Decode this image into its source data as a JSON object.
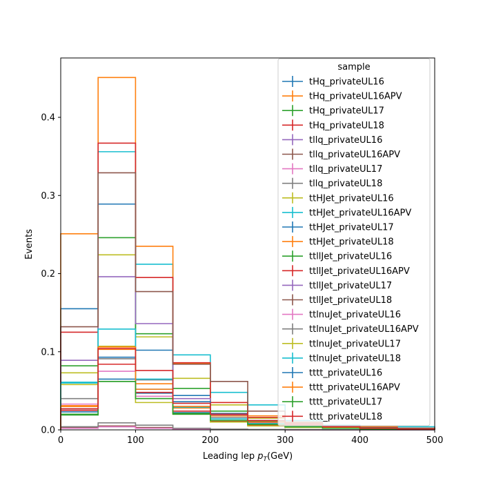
{
  "chart_data": {
    "type": "step-histogram",
    "title": "",
    "xlabel": "Leading lep",
    "xlabel_sub": "T",
    "xlabel_unit": "(GeV)",
    "ylabel": "Events",
    "xlim": [
      0,
      500
    ],
    "ylim": [
      0,
      0.476
    ],
    "xticks": [
      0,
      100,
      200,
      300,
      400,
      500
    ],
    "yticks": [
      0.0,
      0.1,
      0.2,
      0.3,
      0.4
    ],
    "xtick_labels": [
      "0",
      "100",
      "200",
      "300",
      "400",
      "500"
    ],
    "ytick_labels": [
      "0.0",
      "0.1",
      "0.2",
      "0.3",
      "0.4"
    ],
    "bin_edges": [
      0,
      50,
      100,
      150,
      200,
      250,
      300,
      350,
      400,
      450,
      500
    ],
    "grid": false,
    "legend": {
      "title": "sample",
      "placement": "top-right"
    },
    "series": [
      {
        "name": "tHq_privateUL16",
        "color": "#1f77b4",
        "values": [
          0.027,
          0.093,
          0.047,
          0.022,
          0.01,
          0.006,
          0.003,
          0.002,
          0.001,
          0.001
        ]
      },
      {
        "name": "tHq_privateUL16APV",
        "color": "#ff7f0e",
        "values": [
          0.031,
          0.103,
          0.059,
          0.028,
          0.012,
          0.007,
          0.004,
          0.002,
          0.001,
          0.001
        ]
      },
      {
        "name": "tHq_privateUL17",
        "color": "#2ca02c",
        "values": [
          0.019,
          0.062,
          0.04,
          0.021,
          0.01,
          0.006,
          0.003,
          0.002,
          0.001,
          0.001
        ]
      },
      {
        "name": "tHq_privateUL18",
        "color": "#d62728",
        "values": [
          0.025,
          0.084,
          0.048,
          0.024,
          0.011,
          0.006,
          0.004,
          0.002,
          0.001,
          0.001
        ]
      },
      {
        "name": "tllq_privateUL16",
        "color": "#9467bd",
        "values": [
          0.002,
          0.004,
          0.002,
          0.001,
          0.0005,
          0.0003,
          0.0002,
          0.0001,
          0.0001,
          0.0001
        ]
      },
      {
        "name": "tllq_privateUL16APV",
        "color": "#8c564b",
        "values": [
          0.003,
          0.005,
          0.003,
          0.001,
          0.0006,
          0.0003,
          0.0002,
          0.0001,
          0.0001,
          0.0001
        ]
      },
      {
        "name": "tllq_privateUL17",
        "color": "#e377c2",
        "values": [
          0.002,
          0.004,
          0.002,
          0.001,
          0.0005,
          0.0003,
          0.0002,
          0.0001,
          0.0001,
          0.0001
        ]
      },
      {
        "name": "tllq_privateUL18",
        "color": "#7f7f7f",
        "values": [
          0.004,
          0.009,
          0.006,
          0.002,
          0.001,
          0.0005,
          0.0003,
          0.0002,
          0.0001,
          0.0001
        ]
      },
      {
        "name": "ttHJet_privateUL16",
        "color": "#bcbd22",
        "values": [
          0.073,
          0.224,
          0.119,
          0.066,
          0.032,
          0.015,
          0.007,
          0.004,
          0.002,
          0.001
        ]
      },
      {
        "name": "ttHJet_privateUL16APV",
        "color": "#17becf",
        "values": [
          0.061,
          0.356,
          0.212,
          0.096,
          0.048,
          0.032,
          0.012,
          0.006,
          0.004,
          0.004
        ]
      },
      {
        "name": "ttHJet_privateUL17",
        "color": "#1f77b4",
        "values": [
          0.155,
          0.289,
          0.102,
          0.044,
          0.021,
          0.01,
          0.005,
          0.003,
          0.002,
          0.001
        ]
      },
      {
        "name": "ttHJet_privateUL18",
        "color": "#ff7f0e",
        "values": [
          0.251,
          0.451,
          0.235,
          0.085,
          0.035,
          0.018,
          0.009,
          0.005,
          0.004,
          0.002
        ]
      },
      {
        "name": "ttllJet_privateUL16",
        "color": "#2ca02c",
        "values": [
          0.082,
          0.246,
          0.123,
          0.053,
          0.024,
          0.011,
          0.006,
          0.003,
          0.002,
          0.001
        ]
      },
      {
        "name": "ttllJet_privateUL16APV",
        "color": "#d62728",
        "values": [
          0.125,
          0.367,
          0.195,
          0.086,
          0.035,
          0.016,
          0.008,
          0.004,
          0.003,
          0.002
        ]
      },
      {
        "name": "ttllJet_privateUL17",
        "color": "#9467bd",
        "values": [
          0.089,
          0.196,
          0.136,
          0.04,
          0.019,
          0.009,
          0.005,
          0.003,
          0.002,
          0.001
        ]
      },
      {
        "name": "ttllJet_privateUL18",
        "color": "#8c564b",
        "values": [
          0.132,
          0.329,
          0.177,
          0.084,
          0.062,
          0.024,
          0.01,
          0.005,
          0.003,
          0.002
        ]
      },
      {
        "name": "ttlnuJet_privateUL16",
        "color": "#e377c2",
        "values": [
          0.033,
          0.075,
          0.043,
          0.03,
          0.014,
          0.008,
          0.004,
          0.002,
          0.001,
          0.001
        ]
      },
      {
        "name": "ttlnuJet_privateUL16APV",
        "color": "#7f7f7f",
        "values": [
          0.04,
          0.091,
          0.064,
          0.034,
          0.016,
          0.01,
          0.005,
          0.003,
          0.002,
          0.001
        ]
      },
      {
        "name": "ttlnuJet_privateUL17",
        "color": "#bcbd22",
        "values": [
          0.058,
          0.107,
          0.035,
          0.02,
          0.01,
          0.005,
          0.003,
          0.002,
          0.001,
          0.001
        ]
      },
      {
        "name": "ttlnuJet_privateUL18",
        "color": "#17becf",
        "values": [
          0.06,
          0.129,
          0.065,
          0.029,
          0.014,
          0.008,
          0.004,
          0.003,
          0.002,
          0.001
        ]
      },
      {
        "name": "tttt_privateUL16",
        "color": "#1f77b4",
        "values": [
          0.023,
          0.065,
          0.052,
          0.036,
          0.02,
          0.012,
          0.007,
          0.004,
          0.002,
          0.001
        ]
      },
      {
        "name": "tttt_privateUL16APV",
        "color": "#ff7f0e",
        "values": [
          0.03,
          0.106,
          0.052,
          0.03,
          0.018,
          0.01,
          0.006,
          0.003,
          0.002,
          0.001
        ]
      },
      {
        "name": "tttt_privateUL17",
        "color": "#2ca02c",
        "values": [
          0.02,
          0.062,
          0.04,
          0.02,
          0.012,
          0.007,
          0.004,
          0.002,
          0.001,
          0.001
        ]
      },
      {
        "name": "tttt_privateUL18",
        "color": "#d62728",
        "values": [
          0.027,
          0.104,
          0.076,
          0.034,
          0.02,
          0.012,
          0.007,
          0.004,
          0.002,
          0.001
        ]
      }
    ]
  }
}
